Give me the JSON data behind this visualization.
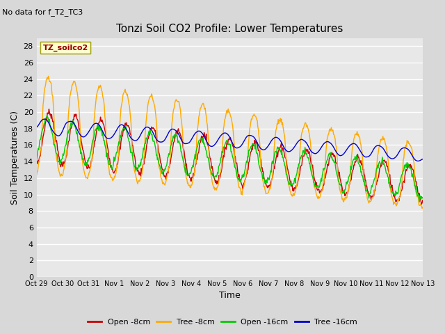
{
  "title": "Tonzi Soil CO2 Profile: Lower Temperatures",
  "subtitle": "No data for f_T2_TC3",
  "ylabel": "Soil Temperatures (C)",
  "xlabel": "Time",
  "legend_label": "TZ_soilco2",
  "series_labels": [
    "Open -8cm",
    "Tree -8cm",
    "Open -16cm",
    "Tree -16cm"
  ],
  "series_colors": [
    "#cc0000",
    "#ffaa00",
    "#00cc00",
    "#0000cc"
  ],
  "ylim": [
    0,
    29
  ],
  "yticks": [
    0,
    2,
    4,
    6,
    8,
    10,
    12,
    14,
    16,
    18,
    20,
    22,
    24,
    26,
    28
  ],
  "fig_bg": "#d8d8d8",
  "plot_bg": "#e8e8e8",
  "grid_color": "#ffffff",
  "tick_labels": [
    "Oct 29",
    "Oct 30",
    "Oct 31",
    "Nov 1",
    "Nov 2",
    "Nov 3",
    "Nov 4",
    "Nov 5",
    "Nov 6",
    "Nov 7",
    "Nov 8",
    "Nov 9",
    "Nov 10",
    "Nov 11",
    "Nov 12",
    "Nov 13"
  ]
}
